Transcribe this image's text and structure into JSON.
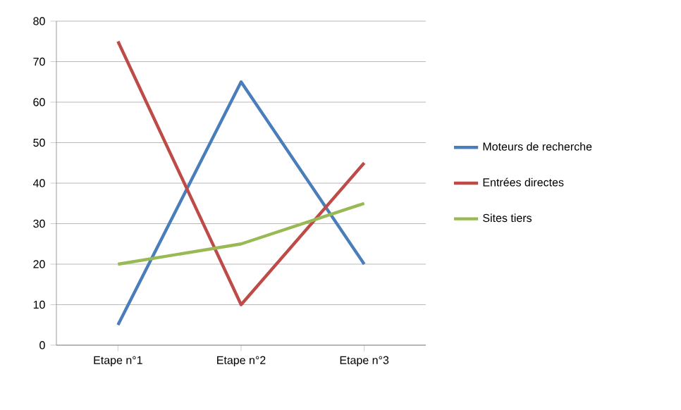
{
  "chart_data": {
    "type": "line",
    "categories": [
      "Etape n°1",
      "Etape n°2",
      "Etape n°3"
    ],
    "series": [
      {
        "name": "Moteurs de recherche",
        "color": "#4a7ebb",
        "values": [
          5,
          65,
          20
        ]
      },
      {
        "name": "Entrées directes",
        "color": "#be4b48",
        "values": [
          75,
          10,
          45
        ]
      },
      {
        "name": "Sites tiers",
        "color": "#98b954",
        "values": [
          20,
          25,
          35
        ]
      }
    ],
    "ylim": [
      0,
      80
    ],
    "yticks": [
      0,
      10,
      20,
      30,
      40,
      50,
      60,
      70,
      80
    ],
    "grid": "y",
    "legend": "right",
    "marker": "none",
    "line_style": "solid"
  }
}
